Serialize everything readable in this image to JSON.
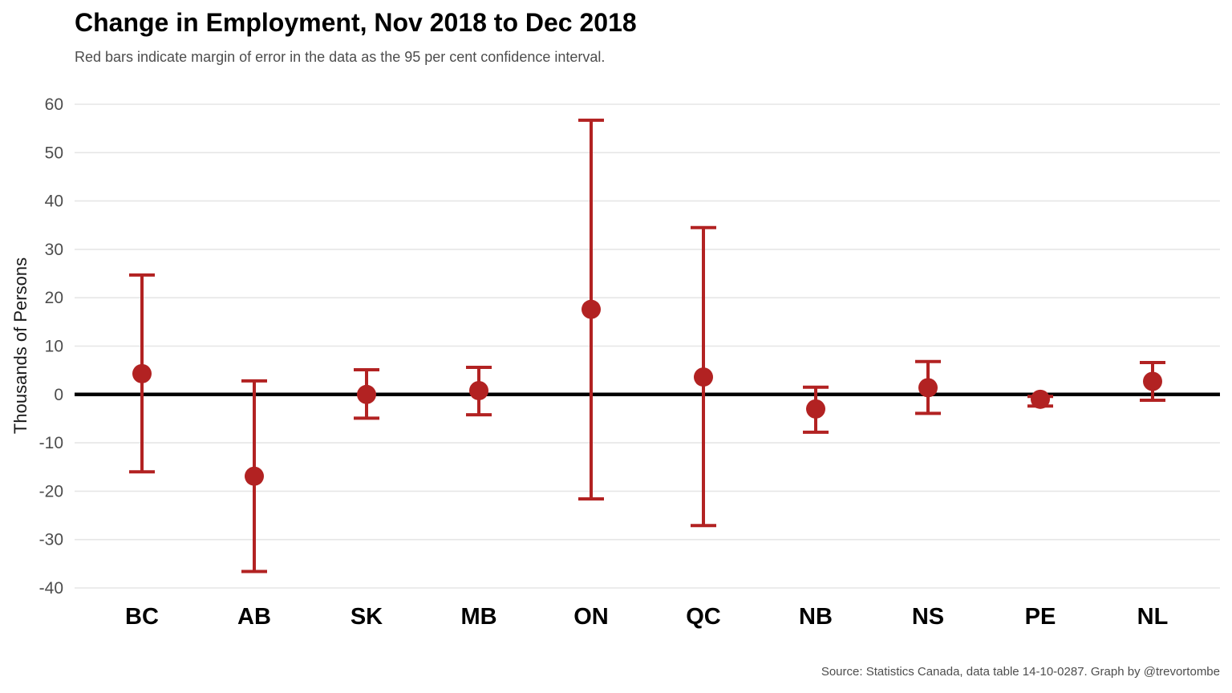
{
  "chart_data": {
    "type": "scatter",
    "title": "Change in Employment, Nov 2018 to Dec 2018",
    "subtitle": "Red bars indicate margin of error in the data as the 95 per cent confidence interval.",
    "caption": "Source: Statistics Canada, data table 14-10-0287. Graph by @trevortombe",
    "ylabel": "Thousands of Persons",
    "xlabel": "",
    "ylim": [
      -40,
      60
    ],
    "yticks": [
      60,
      50,
      40,
      30,
      20,
      10,
      0,
      -10,
      -20,
      -30,
      -40
    ],
    "grid": true,
    "zero_line": true,
    "colors": {
      "marker": "#b22222",
      "errorbar": "#b22222",
      "zero_line": "#000000",
      "grid": "#e6e6e6"
    },
    "categories": [
      "BC",
      "AB",
      "SK",
      "MB",
      "ON",
      "QC",
      "NB",
      "NS",
      "PE",
      "NL"
    ],
    "points": [
      {
        "category": "BC",
        "value": 4.3,
        "lower": -16.0,
        "upper": 24.7
      },
      {
        "category": "AB",
        "value": -16.9,
        "lower": -36.6,
        "upper": 2.8
      },
      {
        "category": "SK",
        "value": 0.0,
        "lower": -4.9,
        "upper": 5.1
      },
      {
        "category": "MB",
        "value": 0.8,
        "lower": -4.2,
        "upper": 5.6
      },
      {
        "category": "ON",
        "value": 17.6,
        "lower": -21.6,
        "upper": 56.7
      },
      {
        "category": "QC",
        "value": 3.6,
        "lower": -27.1,
        "upper": 34.5
      },
      {
        "category": "NB",
        "value": -3.0,
        "lower": -7.8,
        "upper": 1.5
      },
      {
        "category": "NS",
        "value": 1.4,
        "lower": -3.9,
        "upper": 6.8
      },
      {
        "category": "PE",
        "value": -1.0,
        "lower": -2.4,
        "upper": -0.4
      },
      {
        "category": "NL",
        "value": 2.7,
        "lower": -1.2,
        "upper": 6.6
      }
    ]
  }
}
